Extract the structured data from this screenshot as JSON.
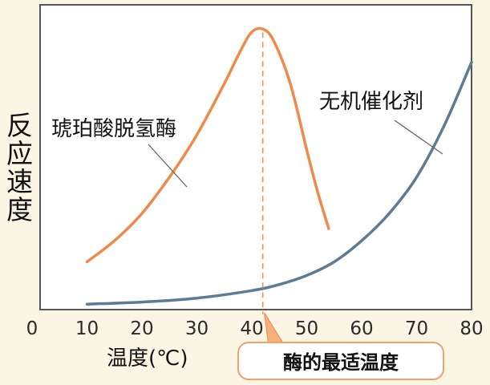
{
  "chart_data": {
    "type": "line",
    "x_ticks": [
      0,
      10,
      20,
      30,
      40,
      50,
      60,
      70,
      80
    ],
    "xlim": [
      0,
      80
    ],
    "ylim": [
      0,
      100
    ],
    "xlabel": "温度(℃)",
    "ylabel": "反应速度",
    "grid": false,
    "series": [
      {
        "name": "琥珀酸脱氢酶",
        "color": "#f08a4b",
        "x": [
          10,
          15,
          20,
          25,
          30,
          35,
          38,
          40,
          42,
          44,
          47,
          50,
          52,
          54
        ],
        "y": [
          15,
          22,
          31,
          43,
          57,
          74,
          85,
          91,
          92,
          88,
          74,
          52,
          38,
          26
        ]
      },
      {
        "name": "无机催化剂",
        "color": "#5c7c96",
        "x": [
          10,
          20,
          30,
          40,
          45,
          50,
          55,
          60,
          65,
          70,
          75,
          80
        ],
        "y": [
          1,
          1.7,
          3,
          5.5,
          7.5,
          10.5,
          15,
          22,
          31,
          43,
          60,
          81
        ]
      }
    ],
    "annotation": {
      "text": "酶的最适温度",
      "x": 42
    }
  }
}
